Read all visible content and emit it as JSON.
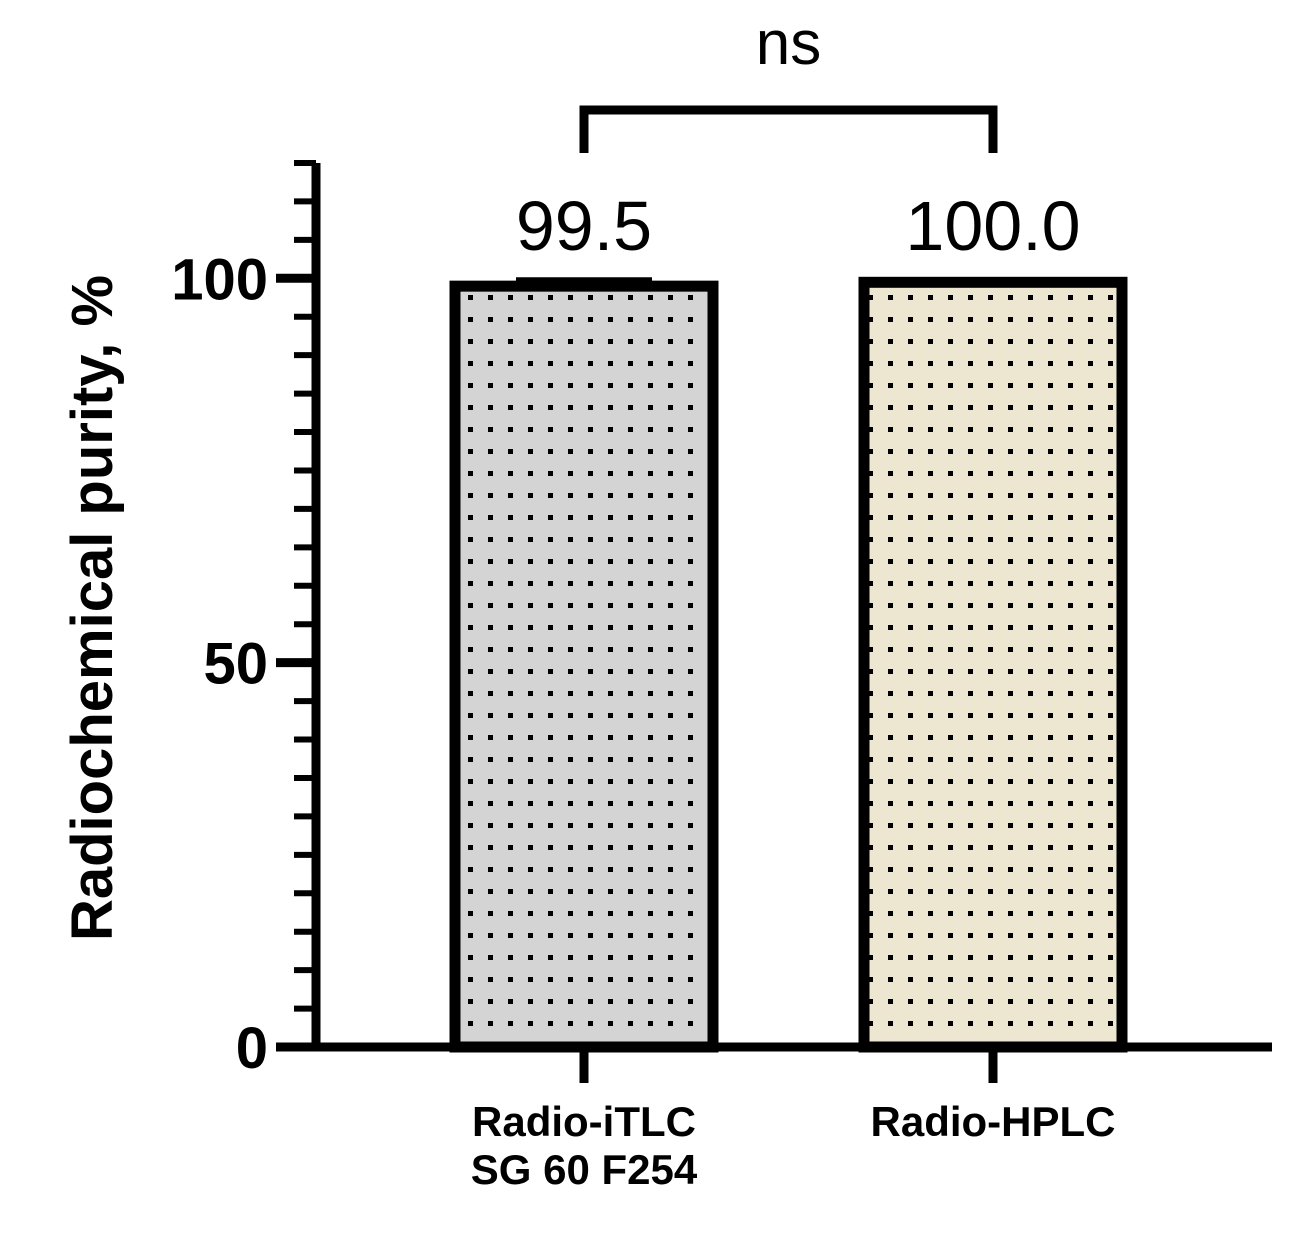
{
  "chart_data": {
    "type": "bar",
    "categories": [
      [
        "Radio-iTLC",
        "SG 60 F254"
      ],
      [
        "Radio-HPLC"
      ]
    ],
    "values": [
      99.5,
      100.0
    ],
    "value_labels": [
      "99.5",
      "100.0"
    ],
    "error_upper": [
      100.0,
      null
    ],
    "ylabel": "Radiochemical purity, %",
    "ylim": [
      0,
      115
    ],
    "yticks": [
      0,
      50,
      100
    ],
    "ytick_labels": [
      "0",
      "50",
      "100"
    ],
    "minor_tick_step": 5,
    "grid": false,
    "bar_colors": [
      "#d4d4d4",
      "#ede6d0"
    ],
    "bar_pattern": "dotted",
    "significance": {
      "between": [
        0,
        1
      ],
      "label": "ns"
    }
  }
}
